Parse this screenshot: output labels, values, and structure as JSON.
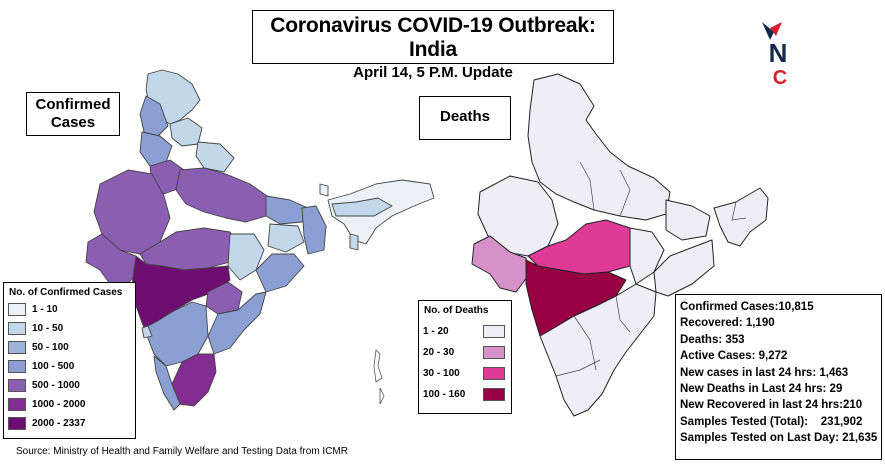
{
  "title": "Coronavirus COVID-19 Outbreak: India",
  "subtitle": "April 14, 5 P.M. Update",
  "confirmed_map": {
    "label_line1": "Confirmed",
    "label_line2": "Cases",
    "legend_title": "No. of Confirmed Cases",
    "legend": [
      {
        "label": "1 - 10",
        "color": "#eaf2f8"
      },
      {
        "label": "10 - 50",
        "color": "#c2d7ea"
      },
      {
        "label": "50 - 100",
        "color": "#9eb3d8"
      },
      {
        "label": "100 - 500",
        "color": "#8b9fd2"
      },
      {
        "label": "500 - 1000",
        "color": "#8a5fb2"
      },
      {
        "label": "1000 - 2000",
        "color": "#832d93"
      },
      {
        "label": "2000 - 2337",
        "color": "#6d0d71"
      }
    ]
  },
  "deaths_map": {
    "label": "Deaths",
    "legend_title": "No. of Deaths",
    "legend": [
      {
        "label": "1 - 20",
        "color": "#efedf5"
      },
      {
        "label": "20 - 30",
        "color": "#d692c8"
      },
      {
        "label": "30 - 100",
        "color": "#de3a96"
      },
      {
        "label": "100 - 160",
        "color": "#980044"
      }
    ]
  },
  "stats": [
    "Confirmed Cases:10,815",
    "Recovered: 1,190",
    "Deaths: 353",
    "Active Cases: 9,272",
    "New cases in last 24 hrs: 1,463",
    "New Deaths in Last 24 hrs: 29",
    "New Recovered in last 24 hrs:210",
    "Samples Tested (Total):    231,902",
    "Samples Tested on Last Day: 21,635"
  ],
  "source": "Source: Ministry of Health and Family Welfare and Testing Data from ICMR",
  "logo": {
    "letter_n": "N",
    "letter_c": "C",
    "navy": "#14284b",
    "red": "#d6202f"
  }
}
